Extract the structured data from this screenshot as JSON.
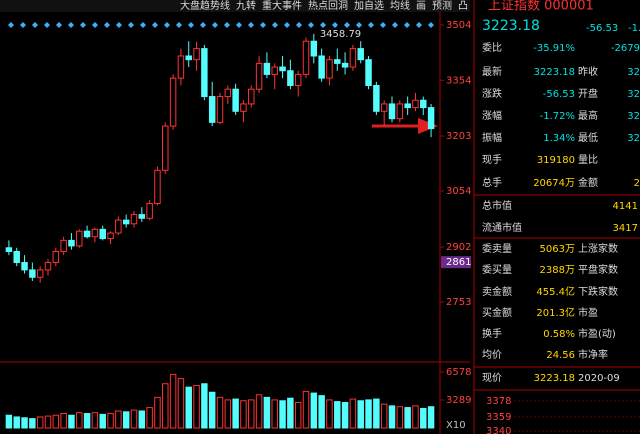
{
  "toolbar": {
    "items": [
      "大盘趋势线",
      "九转",
      "重大事件",
      "热点回洞",
      "加自选",
      "均线",
      "画",
      "预测",
      "凸"
    ]
  },
  "chart": {
    "price_ticks": [
      3504,
      3354,
      3203,
      3054,
      2902,
      2753
    ],
    "current_level": 2861,
    "peak_label": "3458.79",
    "candles": [
      [
        2900,
        2920,
        2880,
        2890
      ],
      [
        2890,
        2900,
        2850,
        2860
      ],
      [
        2860,
        2880,
        2830,
        2840
      ],
      [
        2840,
        2860,
        2810,
        2820
      ],
      [
        2820,
        2850,
        2805,
        2840
      ],
      [
        2840,
        2870,
        2825,
        2860
      ],
      [
        2860,
        2900,
        2850,
        2890
      ],
      [
        2890,
        2930,
        2880,
        2920
      ],
      [
        2920,
        2940,
        2895,
        2905
      ],
      [
        2905,
        2950,
        2900,
        2945
      ],
      [
        2945,
        2960,
        2925,
        2930
      ],
      [
        2930,
        2955,
        2915,
        2950
      ],
      [
        2950,
        2960,
        2920,
        2925
      ],
      [
        2925,
        2945,
        2910,
        2940
      ],
      [
        2940,
        2985,
        2935,
        2975
      ],
      [
        2975,
        2990,
        2955,
        2965
      ],
      [
        2965,
        3000,
        2955,
        2990
      ],
      [
        2990,
        3010,
        2970,
        2980
      ],
      [
        2980,
        3030,
        2975,
        3020
      ],
      [
        3020,
        3120,
        3015,
        3110
      ],
      [
        3110,
        3240,
        3100,
        3230
      ],
      [
        3230,
        3370,
        3220,
        3360
      ],
      [
        3360,
        3440,
        3340,
        3420
      ],
      [
        3420,
        3460,
        3390,
        3410
      ],
      [
        3410,
        3458.79,
        3380,
        3440
      ],
      [
        3440,
        3450,
        3300,
        3310
      ],
      [
        3310,
        3350,
        3230,
        3240
      ],
      [
        3240,
        3320,
        3235,
        3310
      ],
      [
        3310,
        3340,
        3290,
        3330
      ],
      [
        3330,
        3345,
        3260,
        3270
      ],
      [
        3270,
        3300,
        3240,
        3290
      ],
      [
        3290,
        3340,
        3280,
        3330
      ],
      [
        3330,
        3420,
        3320,
        3400
      ],
      [
        3400,
        3430,
        3360,
        3370
      ],
      [
        3370,
        3400,
        3330,
        3390
      ],
      [
        3390,
        3420,
        3360,
        3380
      ],
      [
        3380,
        3410,
        3330,
        3340
      ],
      [
        3340,
        3380,
        3310,
        3370
      ],
      [
        3370,
        3470,
        3360,
        3460
      ],
      [
        3460,
        3480,
        3400,
        3420
      ],
      [
        3420,
        3440,
        3350,
        3360
      ],
      [
        3360,
        3420,
        3340,
        3410
      ],
      [
        3410,
        3440,
        3380,
        3400
      ],
      [
        3400,
        3430,
        3370,
        3390
      ],
      [
        3390,
        3450,
        3380,
        3440
      ],
      [
        3440,
        3460,
        3400,
        3410
      ],
      [
        3410,
        3420,
        3330,
        3340
      ],
      [
        3340,
        3350,
        3260,
        3270
      ],
      [
        3270,
        3300,
        3230,
        3290
      ],
      [
        3290,
        3310,
        3240,
        3250
      ],
      [
        3250,
        3300,
        3240,
        3290
      ],
      [
        3290,
        3310,
        3260,
        3280
      ],
      [
        3280,
        3320,
        3270,
        3300
      ],
      [
        3300,
        3310,
        3260,
        3280
      ],
      [
        3280,
        3290,
        3200,
        3223.18
      ]
    ],
    "volume_ticks": [
      6578,
      3289
    ],
    "volume_unit": "X10",
    "volumes": [
      1500,
      1300,
      1200,
      1100,
      1300,
      1400,
      1500,
      1700,
      1500,
      1800,
      1700,
      1800,
      1600,
      1700,
      2000,
      1900,
      2100,
      2000,
      2400,
      3600,
      5200,
      6300,
      5800,
      4800,
      5000,
      5200,
      4200,
      3600,
      3300,
      3400,
      3200,
      3300,
      3900,
      3600,
      3300,
      3200,
      3500,
      3000,
      4300,
      4100,
      3800,
      3300,
      3100,
      3000,
      3400,
      3200,
      3300,
      3400,
      2800,
      2600,
      2500,
      2400,
      2600,
      2300,
      2500
    ]
  },
  "panel": {
    "title": "上证指数 000001",
    "price": "3223.18",
    "change": "-56.53",
    "change_pct": "-1.",
    "rows": [
      [
        "委比",
        "-35.91%",
        "-2679"
      ],
      [
        "最新",
        "3223.18",
        "昨收",
        "32"
      ],
      [
        "涨跌",
        "-56.53",
        "开盘",
        "32"
      ],
      [
        "涨幅",
        "-1.72%",
        "最高",
        "32"
      ],
      [
        "振幅",
        "1.34%",
        "最低",
        "32"
      ],
      [
        "现手",
        "319180",
        "量比"
      ],
      [
        "总手",
        "20674万",
        "金额",
        "2"
      ],
      [
        "总市值",
        "4141"
      ],
      [
        "流通市值",
        "3417"
      ],
      [
        "委卖量",
        "5063万",
        "上涨家数"
      ],
      [
        "委买量",
        "2388万",
        "平盘家数"
      ],
      [
        "卖金额",
        "455.4亿",
        "下跌家数"
      ],
      [
        "买金额",
        "201.3亿",
        "市盈"
      ],
      [
        "换手",
        "0.58%",
        "市盈(动)"
      ],
      [
        "均价",
        "24.56",
        "市净率"
      ],
      [
        "现价",
        "3223.18",
        "2020-09"
      ]
    ],
    "mini_ticks": [
      "3378",
      "3359",
      "3340"
    ]
  }
}
